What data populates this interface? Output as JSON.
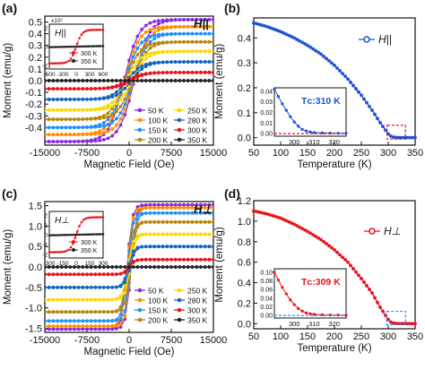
{
  "figure": {
    "panels": [
      "(a)",
      "(b)",
      "(c)",
      "(d)"
    ]
  },
  "chart_data": [
    {
      "panel": "(a)",
      "type": "line",
      "title": "",
      "field_label": "H||",
      "xlabel": "Magnetic Field (Oe)",
      "ylabel": "Moment (emu/g)",
      "xlim": [
        -15000,
        15000
      ],
      "ylim": [
        -0.55,
        0.55
      ],
      "xticks": [
        "-15000",
        "-7500",
        "0",
        "7500",
        "15000"
      ],
      "yticks": [
        "-0.4",
        "-0.3",
        "-0.2",
        "-0.1",
        "0.0",
        "0.1",
        "0.2",
        "0.3",
        "0.4",
        "0.5"
      ],
      "x": [
        -15000,
        -12000,
        -9000,
        -6000,
        -3000,
        -1500,
        -600,
        0,
        600,
        1500,
        3000,
        6000,
        9000,
        12000,
        15000
      ],
      "series": [
        {
          "name": "50 K",
          "color": "#8a2be2",
          "saturation": 0.52
        },
        {
          "name": "100 K",
          "color": "#ff8c00",
          "saturation": 0.46
        },
        {
          "name": "150 K",
          "color": "#1e90ff",
          "saturation": 0.4
        },
        {
          "name": "200 K",
          "color": "#b8860b",
          "saturation": 0.33
        },
        {
          "name": "250 K",
          "color": "#ffd700",
          "saturation": 0.25
        },
        {
          "name": "280 K",
          "color": "#1565c0",
          "saturation": 0.16
        },
        {
          "name": "300 K",
          "color": "#e8141c",
          "saturation": 0.07
        },
        {
          "name": "350 K",
          "color": "#222222",
          "saturation": 0.0
        }
      ],
      "inset": {
        "label": "H||",
        "yexp": "x10²",
        "xticks": [
          "-600",
          "-300",
          "0",
          "300",
          "600"
        ],
        "yticks": [
          "-2",
          "0",
          "2"
        ],
        "series": [
          {
            "name": "300 K",
            "color": "#e8141c"
          },
          {
            "name": "350 K",
            "color": "#222222"
          }
        ]
      }
    },
    {
      "panel": "(b)",
      "type": "line",
      "title": "",
      "series_name": "H||",
      "color": "#1e4fd6",
      "xlabel": "Temperature (K)",
      "ylabel": "Moment (emu/g)",
      "xlim": [
        50,
        350
      ],
      "ylim": [
        -0.03,
        0.48
      ],
      "xticks": [
        "50",
        "100",
        "150",
        "200",
        "250",
        "300",
        "350"
      ],
      "yticks": [
        "0.0",
        "0.1",
        "0.2",
        "0.3",
        "0.4"
      ],
      "x": [
        50,
        75,
        100,
        125,
        150,
        175,
        200,
        225,
        250,
        270,
        285,
        295,
        300,
        305,
        310,
        320,
        330,
        340,
        350
      ],
      "values": [
        0.46,
        0.445,
        0.425,
        0.4,
        0.37,
        0.335,
        0.29,
        0.235,
        0.17,
        0.11,
        0.06,
        0.03,
        0.015,
        0.006,
        0.002,
        0.0,
        0.0,
        0.0,
        0.0
      ],
      "inset": {
        "annotation": "Tᴄ:310 K",
        "xticks": [
          "300",
          "310",
          "320"
        ],
        "yticks": [
          "0.00",
          "0.01",
          "0.02",
          "0.03",
          "0.04"
        ],
        "x": [
          290,
          292,
          294,
          296,
          298,
          300,
          302,
          304,
          306,
          308,
          310,
          314,
          318,
          322,
          326
        ],
        "values": [
          0.042,
          0.035,
          0.028,
          0.022,
          0.016,
          0.011,
          0.007,
          0.004,
          0.0025,
          0.0015,
          0.001,
          0.0007,
          0.0005,
          0.0004,
          0.0003
        ]
      }
    },
    {
      "panel": "(c)",
      "type": "line",
      "title": "",
      "field_label": "H⊥",
      "xlabel": "Magnetic Field (Oe)",
      "ylabel": "Moment (emu/g)",
      "xlim": [
        -15000,
        15000
      ],
      "ylim": [
        -1.6,
        1.6
      ],
      "xticks": [
        "-15000",
        "-7500",
        "0",
        "7500",
        "15000"
      ],
      "yticks": [
        "-1.5",
        "-1.0",
        "-0.5",
        "0.0",
        "0.5",
        "1.0",
        "1.5"
      ],
      "series": [
        {
          "name": "50 K",
          "color": "#8a2be2",
          "saturation": 1.52
        },
        {
          "name": "100 K",
          "color": "#ff8c00",
          "saturation": 1.45
        },
        {
          "name": "150 K",
          "color": "#1e90ff",
          "saturation": 1.32
        },
        {
          "name": "200 K",
          "color": "#b8860b",
          "saturation": 1.1
        },
        {
          "name": "250 K",
          "color": "#ffd700",
          "saturation": 0.8
        },
        {
          "name": "280 K",
          "color": "#1565c0",
          "saturation": 0.5
        },
        {
          "name": "300 K",
          "color": "#e8141c",
          "saturation": 0.18
        },
        {
          "name": "350 K",
          "color": "#222222",
          "saturation": 0.0
        }
      ],
      "inset": {
        "label": "H⊥",
        "xticks": [
          "-300",
          "-150",
          "0",
          "150",
          "300"
        ],
        "yticks": [
          "-2",
          "-1",
          "0",
          "1",
          "2"
        ],
        "series": [
          {
            "name": "300 K",
            "color": "#e8141c"
          },
          {
            "name": "350 K",
            "color": "#222222"
          }
        ]
      }
    },
    {
      "panel": "(d)",
      "type": "line",
      "title": "",
      "series_name": "H⊥",
      "color": "#e8141c",
      "xlabel": "Temperature (K)",
      "ylabel": "Moment (emu/g)",
      "xlim": [
        50,
        350
      ],
      "ylim": [
        -0.05,
        1.2
      ],
      "xticks": [
        "50",
        "100",
        "150",
        "200",
        "250",
        "300",
        "350"
      ],
      "yticks": [
        "0.0",
        "0.2",
        "0.4",
        "0.6",
        "0.8",
        "1.0",
        "1.2"
      ],
      "x": [
        50,
        75,
        100,
        125,
        150,
        175,
        200,
        225,
        250,
        270,
        285,
        295,
        300,
        305,
        310,
        320,
        330,
        340,
        350
      ],
      "values": [
        1.1,
        1.07,
        1.03,
        0.97,
        0.9,
        0.82,
        0.72,
        0.6,
        0.44,
        0.3,
        0.16,
        0.08,
        0.04,
        0.015,
        0.005,
        0.0,
        0.0,
        0.0,
        0.0
      ],
      "inset": {
        "annotation": "Tᴄ:309 K",
        "xticks": [
          "300",
          "310",
          "320"
        ],
        "yticks": [
          "0.00",
          "0.02",
          "0.04",
          "0.06",
          "0.08",
          "0.10"
        ],
        "x": [
          290,
          292,
          294,
          296,
          298,
          300,
          302,
          304,
          306,
          308,
          310,
          314,
          318,
          322,
          326
        ],
        "values": [
          0.1,
          0.082,
          0.065,
          0.05,
          0.036,
          0.025,
          0.016,
          0.01,
          0.006,
          0.004,
          0.0025,
          0.0015,
          0.001,
          0.0008,
          0.0006
        ]
      }
    }
  ]
}
